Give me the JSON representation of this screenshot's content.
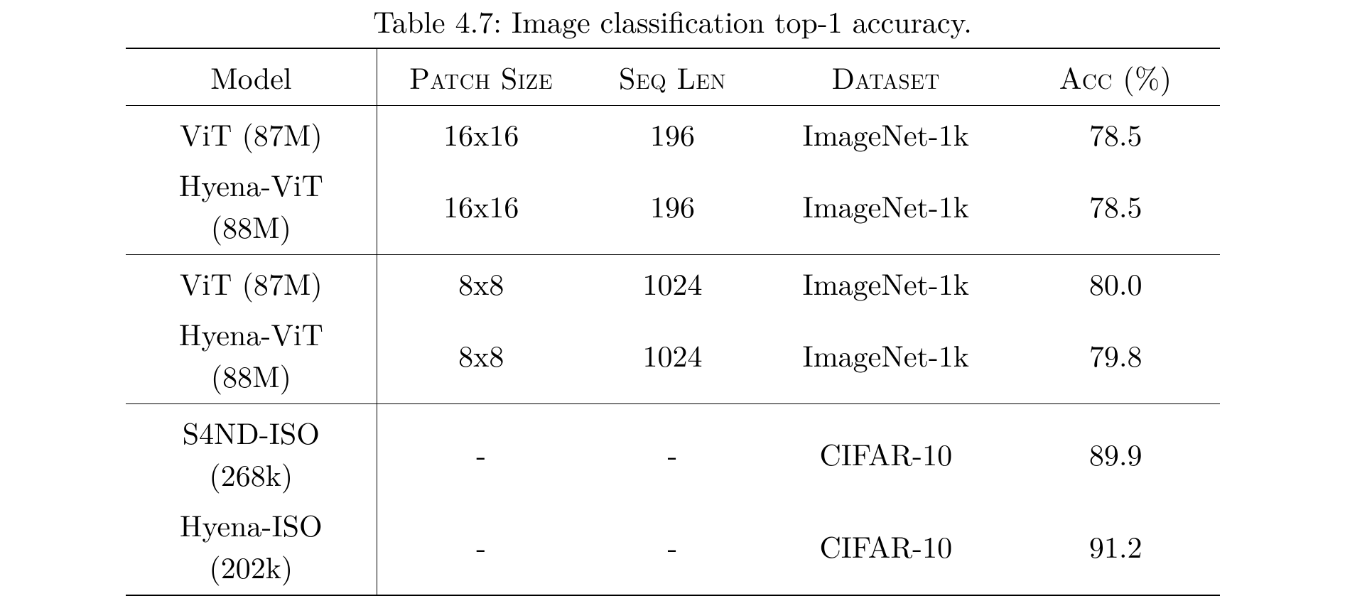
{
  "caption": "Table 4.7: Image classification top-1 accuracy.",
  "table": {
    "columns": [
      {
        "label": "Model",
        "smallcaps": false,
        "key": "model",
        "class": "col-model"
      },
      {
        "label": "Patch Size",
        "smallcaps": true,
        "key": "patch",
        "class": "col-patch"
      },
      {
        "label": "Seq Len",
        "smallcaps": true,
        "key": "seq",
        "class": "col-seq"
      },
      {
        "label": "Dataset",
        "smallcaps": true,
        "key": "dataset",
        "class": "col-dataset"
      },
      {
        "label": "Acc (%)",
        "smallcaps": true,
        "key": "acc",
        "class": "col-acc"
      }
    ],
    "groups": [
      {
        "rows": [
          {
            "model": "ViT (87M)",
            "patch": "16x16",
            "seq": "196",
            "dataset": "ImageNet-1k",
            "acc": "78.5"
          },
          {
            "model": "Hyena-ViT (88M)",
            "patch": "16x16",
            "seq": "196",
            "dataset": "ImageNet-1k",
            "acc": "78.5"
          }
        ]
      },
      {
        "rows": [
          {
            "model": "ViT (87M)",
            "patch": "8x8",
            "seq": "1024",
            "dataset": "ImageNet-1k",
            "acc": "80.0"
          },
          {
            "model": "Hyena-ViT (88M)",
            "patch": "8x8",
            "seq": "1024",
            "dataset": "ImageNet-1k",
            "acc": "79.8"
          }
        ]
      },
      {
        "rows": [
          {
            "model": "S4ND-ISO (268k)",
            "patch": "-",
            "seq": "-",
            "dataset": "CIFAR-10",
            "acc": "89.9"
          },
          {
            "model": "Hyena-ISO (202k)",
            "patch": "-",
            "seq": "-",
            "dataset": "CIFAR-10",
            "acc": "91.2"
          }
        ]
      }
    ],
    "style": {
      "font_family": "Latin Modern Roman, Computer Modern, Georgia, serif",
      "caption_fontsize": 42,
      "cell_fontsize": 42,
      "text_color": "#000000",
      "background_color": "#ffffff",
      "rule_color": "#000000",
      "top_rule_width": 2,
      "mid_rule_width": 1.5,
      "bottom_rule_width": 2,
      "vertical_rule_width": 1.5,
      "col_widths_pct": [
        23,
        19,
        16,
        23,
        19
      ],
      "text_align": "center"
    }
  }
}
